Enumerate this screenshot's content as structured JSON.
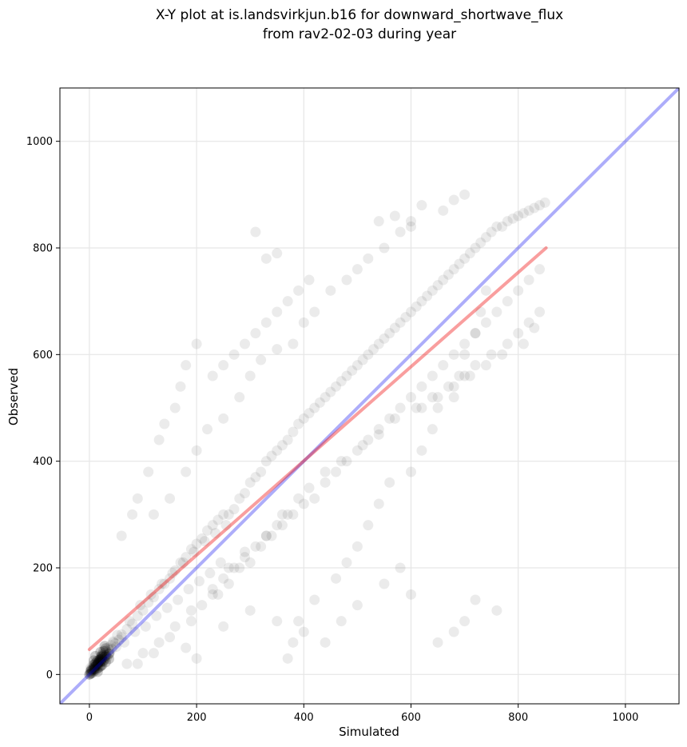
{
  "chart_data": {
    "type": "scatter",
    "title_line1": "X-Y plot at is.landsvirkjun.b16 for downward_shortwave_flux",
    "title_line2": "from rav2-02-03 during year",
    "xlabel": "Simulated",
    "ylabel": "Observed",
    "xlim": [
      -55,
      1100
    ],
    "ylim": [
      -55,
      1100
    ],
    "xticks": [
      0,
      200,
      400,
      600,
      800,
      1000
    ],
    "yticks": [
      0,
      200,
      400,
      600,
      800,
      1000
    ],
    "grid": true,
    "colors": {
      "points": "#000000",
      "identity_line": "#0000ee",
      "regression_line": "#ee0000",
      "grid": "#e6e6e6"
    },
    "identity_line": {
      "x": [
        -55,
        1100
      ],
      "y": [
        -55,
        1100
      ]
    },
    "regression_line": {
      "x": [
        0,
        852
      ],
      "y": [
        47,
        800
      ]
    },
    "points": {
      "x": [
        0,
        2,
        4,
        1,
        3,
        5,
        6,
        8,
        10,
        12,
        15,
        18,
        20,
        22,
        25,
        28,
        30,
        35,
        40,
        45,
        7,
        9,
        14,
        16,
        24,
        32,
        38,
        50,
        55,
        60,
        11,
        13,
        19,
        21,
        26,
        29,
        33,
        36,
        42,
        48,
        2,
        6,
        10,
        17,
        23,
        27,
        31,
        37,
        44,
        52,
        60,
        70,
        80,
        90,
        100,
        110,
        120,
        130,
        140,
        150,
        160,
        170,
        180,
        190,
        200,
        210,
        220,
        230,
        240,
        250,
        65,
        75,
        85,
        95,
        105,
        115,
        125,
        135,
        145,
        155,
        165,
        175,
        185,
        195,
        205,
        215,
        225,
        235,
        245,
        255,
        260,
        270,
        280,
        290,
        300,
        310,
        320,
        330,
        340,
        350,
        360,
        370,
        380,
        390,
        400,
        410,
        420,
        430,
        440,
        450,
        460,
        470,
        480,
        490,
        500,
        510,
        520,
        530,
        540,
        550,
        560,
        570,
        580,
        590,
        600,
        610,
        620,
        630,
        640,
        650,
        660,
        670,
        680,
        690,
        700,
        710,
        720,
        730,
        740,
        750,
        760,
        770,
        780,
        790,
        800,
        810,
        820,
        830,
        840,
        850,
        120,
        150,
        180,
        200,
        220,
        250,
        280,
        300,
        320,
        350,
        380,
        400,
        420,
        450,
        480,
        500,
        520,
        550,
        580,
        600,
        620,
        650,
        680,
        700,
        720,
        750,
        780,
        800,
        820,
        840,
        100,
        130,
        160,
        190,
        230,
        260,
        290,
        330,
        360,
        390,
        410,
        440,
        470,
        510,
        540,
        570,
        610,
        640,
        670,
        710,
        740,
        770,
        810,
        830,
        760,
        720,
        700,
        680,
        650,
        600,
        580,
        550,
        500,
        470,
        440,
        400,
        350,
        300,
        250,
        200,
        180,
        150,
        120,
        90,
        70,
        370,
        380,
        390,
        420,
        460,
        480,
        500,
        520,
        540,
        560,
        600,
        620,
        640,
        650,
        680,
        690,
        700,
        720,
        730,
        740,
        230,
        250,
        270,
        290,
        310,
        330,
        350,
        370,
        390,
        410,
        200,
        180,
        170,
        160,
        140,
        130,
        110,
        90,
        80,
        60,
        310,
        330,
        350,
        540,
        570,
        600,
        620,
        660,
        680,
        700,
        240,
        260,
        280,
        300,
        320,
        340,
        360,
        380,
        400,
        420,
        440,
        460,
        480,
        500,
        520,
        540,
        560,
        580,
        600,
        620,
        640,
        660,
        680,
        700,
        720,
        740,
        760,
        780,
        800,
        820,
        840,
        190,
        210,
        230,
        250,
        270,
        290,
        310,
        330,
        350,
        370
      ],
      "y": [
        0,
        1,
        3,
        5,
        8,
        2,
        10,
        12,
        15,
        18,
        20,
        25,
        28,
        30,
        35,
        40,
        45,
        50,
        55,
        60,
        4,
        6,
        11,
        22,
        26,
        33,
        42,
        52,
        65,
        70,
        7,
        9,
        14,
        16,
        24,
        29,
        32,
        38,
        48,
        58,
        12,
        18,
        20,
        27,
        31,
        36,
        44,
        46,
        62,
        74,
        75,
        85,
        95,
        110,
        120,
        135,
        145,
        160,
        170,
        180,
        195,
        210,
        220,
        235,
        245,
        255,
        270,
        280,
        290,
        300,
        60,
        100,
        80,
        130,
        90,
        150,
        110,
        170,
        125,
        190,
        140,
        210,
        160,
        230,
        175,
        250,
        190,
        265,
        210,
        280,
        300,
        310,
        330,
        340,
        360,
        370,
        380,
        400,
        410,
        420,
        430,
        440,
        455,
        470,
        480,
        490,
        500,
        510,
        520,
        530,
        540,
        550,
        560,
        570,
        580,
        590,
        600,
        610,
        620,
        630,
        640,
        650,
        660,
        670,
        680,
        690,
        700,
        710,
        720,
        730,
        740,
        750,
        760,
        770,
        780,
        790,
        800,
        810,
        820,
        830,
        840,
        840,
        850,
        855,
        860,
        865,
        870,
        875,
        880,
        885,
        300,
        330,
        380,
        420,
        460,
        480,
        520,
        560,
        590,
        610,
        620,
        660,
        680,
        720,
        740,
        760,
        780,
        800,
        830,
        850,
        500,
        520,
        540,
        560,
        580,
        600,
        620,
        640,
        660,
        680,
        40,
        60,
        90,
        120,
        160,
        200,
        230,
        260,
        300,
        330,
        350,
        380,
        400,
        430,
        450,
        480,
        500,
        520,
        540,
        560,
        580,
        600,
        620,
        650,
        120,
        140,
        100,
        80,
        60,
        150,
        200,
        170,
        130,
        100,
        60,
        80,
        100,
        120,
        90,
        30,
        50,
        70,
        40,
        20,
        20,
        30,
        60,
        100,
        140,
        180,
        210,
        240,
        280,
        320,
        360,
        380,
        420,
        460,
        500,
        520,
        560,
        600,
        640,
        680,
        720,
        560,
        580,
        600,
        620,
        640,
        660,
        680,
        700,
        720,
        740,
        620,
        580,
        540,
        500,
        470,
        440,
        380,
        330,
        300,
        260,
        830,
        780,
        790,
        850,
        860,
        840,
        880,
        870,
        890,
        900,
        150,
        170,
        200,
        210,
        240,
        260,
        280,
        300,
        320,
        330,
        360,
        380,
        400,
        420,
        440,
        460,
        480,
        500,
        520,
        540,
        560,
        580,
        600,
        620,
        640,
        660,
        680,
        700,
        720,
        740,
        760,
        100,
        130,
        150,
        180,
        200,
        220,
        240,
        260,
        280,
        300
      ]
    }
  }
}
